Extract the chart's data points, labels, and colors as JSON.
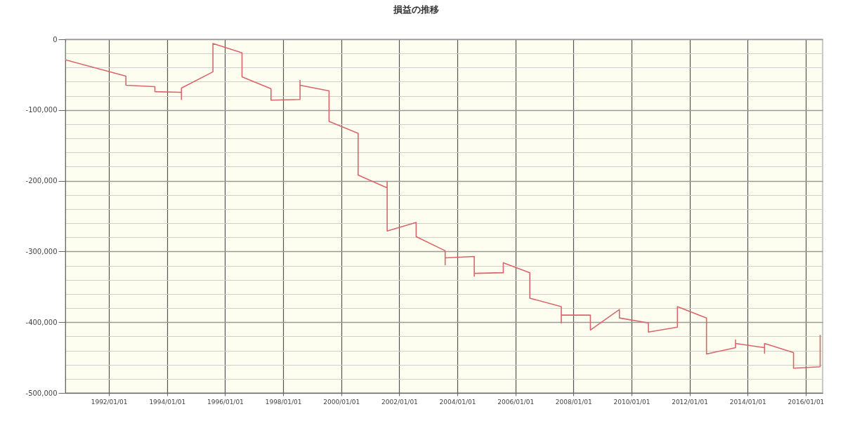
{
  "chart_data": {
    "type": "line",
    "title": "損益の推移",
    "x": [
      "1990-07",
      "1990-07",
      "1992-08",
      "1992-08",
      "1993-08",
      "1993-08",
      "1994-07",
      "1994-07",
      "1994-07",
      "1995-08",
      "1995-08",
      "1996-08",
      "1996-08",
      "1997-08",
      "1997-08",
      "1998-08",
      "1998-08",
      "1998-08",
      "1999-08",
      "1999-08",
      "2000-08",
      "2000-08",
      "2001-08",
      "2001-08",
      "2001-08",
      "2002-08",
      "2002-08",
      "2003-08",
      "2003-08",
      "2003-08",
      "2004-08",
      "2004-08",
      "2004-08",
      "2005-08",
      "2005-08",
      "2006-07",
      "2006-07",
      "2007-08",
      "2007-08",
      "2007-08",
      "2008-08",
      "2008-08",
      "2009-08",
      "2009-08",
      "2010-08",
      "2010-08",
      "2011-08",
      "2011-08",
      "2012-08",
      "2012-08",
      "2013-08",
      "2013-08",
      "2013-08",
      "2014-08",
      "2014-08",
      "2014-08",
      "2015-08",
      "2015-08",
      "2016-07",
      "2016-07"
    ],
    "values": [
      -4000,
      -29000,
      -52000,
      -65000,
      -67000,
      -74000,
      -75000,
      -85000,
      -69000,
      -46000,
      -6000,
      -19000,
      -53000,
      -70000,
      -86000,
      -85000,
      -58000,
      -65000,
      -73000,
      -116000,
      -133000,
      -192000,
      -210000,
      -201000,
      -271000,
      -259000,
      -279000,
      -299000,
      -319000,
      -309000,
      -307000,
      -335000,
      -331000,
      -330000,
      -316000,
      -330000,
      -366000,
      -378000,
      -401000,
      -390000,
      -390000,
      -411000,
      -382000,
      -394000,
      -401000,
      -414000,
      -407000,
      -378000,
      -394000,
      -445000,
      -436000,
      -425000,
      -430000,
      -436000,
      -444000,
      -430000,
      -443000,
      -465000,
      -463000,
      -418000
    ],
    "color": "#d9666b",
    "xlim": [
      "1990-07",
      "2016-08"
    ],
    "ylim": [
      -500000,
      0
    ],
    "xticks": [
      {
        "value": "1992-01-01",
        "label": "1992/01/01"
      },
      {
        "value": "1994-01-01",
        "label": "1994/01/01"
      },
      {
        "value": "1996-01-01",
        "label": "1996/01/01"
      },
      {
        "value": "1998-01-01",
        "label": "1998/01/01"
      },
      {
        "value": "2000-01-01",
        "label": "2000/01/01"
      },
      {
        "value": "2002-01-01",
        "label": "2002/01/01"
      },
      {
        "value": "2004-01-01",
        "label": "2004/01/01"
      },
      {
        "value": "2006-01-01",
        "label": "2006/01/01"
      },
      {
        "value": "2008-01-01",
        "label": "2008/01/01"
      },
      {
        "value": "2010-01-01",
        "label": "2010/01/01"
      },
      {
        "value": "2012-01-01",
        "label": "2012/01/01"
      },
      {
        "value": "2014-01-01",
        "label": "2014/01/01"
      },
      {
        "value": "2016-01-01",
        "label": "2016/01/01"
      }
    ],
    "yticks": [
      0,
      {
        "value": -20000,
        "label": null
      },
      {
        "value": -40000,
        "label": null
      },
      {
        "value": -60000,
        "label": null
      },
      {
        "value": -80000,
        "label": null
      },
      {
        "value": -100000,
        "label": "-100,000"
      },
      {
        "value": -120000,
        "label": null
      },
      {
        "value": -140000,
        "label": null
      },
      {
        "value": -160000,
        "label": null
      },
      {
        "value": -180000,
        "label": null
      },
      {
        "value": -200000,
        "label": "-200,000"
      },
      {
        "value": -220000,
        "label": null
      },
      {
        "value": -240000,
        "label": null
      },
      {
        "value": -260000,
        "label": null
      },
      {
        "value": -280000,
        "label": null
      },
      {
        "value": -300000,
        "label": "-300,000"
      },
      {
        "value": -320000,
        "label": null
      },
      {
        "value": -340000,
        "label": null
      },
      {
        "value": -360000,
        "label": null
      },
      {
        "value": -380000,
        "label": null
      },
      {
        "value": -400000,
        "label": "-400,000"
      },
      {
        "value": -420000,
        "label": null
      },
      {
        "value": -440000,
        "label": null
      },
      {
        "value": -460000,
        "label": null
      },
      {
        "value": -480000,
        "label": null
      },
      {
        "value": -500000,
        "label": "-500,000"
      }
    ],
    "grid": true
  }
}
